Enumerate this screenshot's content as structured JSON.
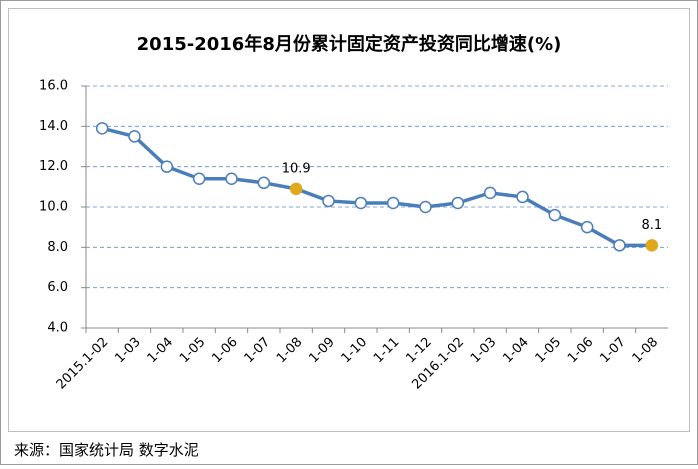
{
  "chart_data": {
    "type": "line",
    "title": "2015-2016年8月份累计固定资产投资同比增速(%)",
    "categories": [
      "2015.1-02",
      "1-03",
      "1-04",
      "1-05",
      "1-06",
      "1-07",
      "1-08",
      "1-09",
      "1-10",
      "1-11",
      "1-12",
      "2016.1-02",
      "1-03",
      "1-04",
      "1-05",
      "1-06",
      "1-07",
      "1-08"
    ],
    "series": [
      {
        "name": "累计固定资产投资同比增速",
        "color": "#4a7ebb",
        "values": [
          13.9,
          13.5,
          12.0,
          11.4,
          11.4,
          11.2,
          10.9,
          10.3,
          10.2,
          10.2,
          10.0,
          10.2,
          10.7,
          10.5,
          9.6,
          9.0,
          8.1,
          8.1
        ]
      }
    ],
    "highlight_points": [
      6,
      17
    ],
    "highlight_color": "#e0a81c",
    "ylim": [
      4,
      16
    ],
    "yticks": [
      {
        "value": 4,
        "label": "4.0"
      },
      {
        "value": 6,
        "label": "6.0"
      },
      {
        "value": 8,
        "label": "8.0"
      },
      {
        "value": 10,
        "label": "10.0"
      },
      {
        "value": 12,
        "label": "12.0"
      },
      {
        "value": 14,
        "label": "14.0"
      },
      {
        "value": 16,
        "label": "16.0"
      }
    ],
    "grid": true
  },
  "source": "来源：国家统计局 数字水泥"
}
